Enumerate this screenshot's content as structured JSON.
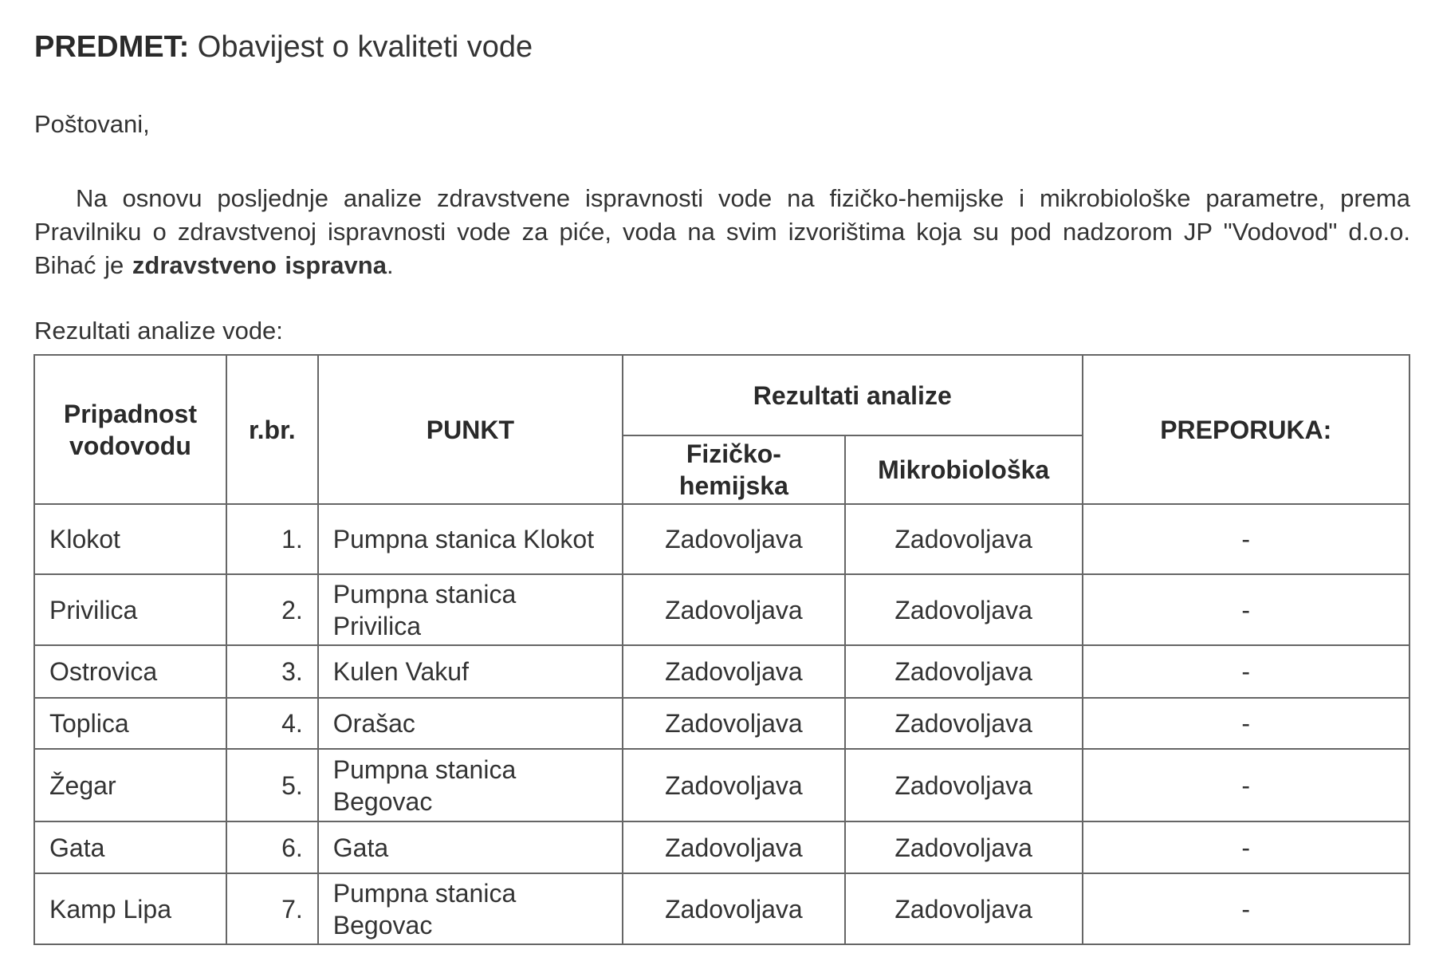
{
  "subject": {
    "label": "PREDMET:",
    "text": "Obavijest o kvaliteti vode"
  },
  "greeting": "Poštovani,",
  "paragraph": {
    "text": "Na osnovu posljednje analize zdravstvene ispravnosti vode na fizičko-hemijske i mikrobiološke parametre, prema Pravilniku o zdravstvenoj ispravnosti vode za piće, voda na svim izvorištima koja su pod nadzorom JP \"Vodovod\" d.o.o. Bihać je ",
    "bold": "zdravstveno ispravna",
    "end": "."
  },
  "table_caption": "Rezultati analize vode:",
  "table": {
    "headers": {
      "owner": "Pripadnost vodovodu",
      "num": "r.br.",
      "point": "PUNKT",
      "results": "Rezultati analize",
      "phys": "Fizičko-hemijska",
      "micro": "Mikrobiološka",
      "rec": "PREPORUKA:"
    },
    "rows": [
      {
        "owner": "Klokot",
        "num": "1.",
        "point": "Pumpna stanica Klokot",
        "phys": "Zadovoljava",
        "micro": "Zadovoljava",
        "rec": "-"
      },
      {
        "owner": "Privilica",
        "num": "2.",
        "point": "Pumpna stanica Privilica",
        "phys": "Zadovoljava",
        "micro": "Zadovoljava",
        "rec": "-"
      },
      {
        "owner": "Ostrovica",
        "num": "3.",
        "point": "Kulen Vakuf",
        "phys": "Zadovoljava",
        "micro": "Zadovoljava",
        "rec": "-"
      },
      {
        "owner": "Toplica",
        "num": "4.",
        "point": "Orašac",
        "phys": "Zadovoljava",
        "micro": "Zadovoljava",
        "rec": "-"
      },
      {
        "owner": "Žegar",
        "num": "5.",
        "point": "Pumpna stanica Begovac",
        "phys": "Zadovoljava",
        "micro": "Zadovoljava",
        "rec": "-"
      },
      {
        "owner": "Gata",
        "num": "6.",
        "point": "Gata",
        "phys": "Zadovoljava",
        "micro": "Zadovoljava",
        "rec": "-"
      },
      {
        "owner": "Kamp Lipa",
        "num": "7.",
        "point": "Pumpna stanica Begovac",
        "phys": "Zadovoljava",
        "micro": "Zadovoljava",
        "rec": "-"
      }
    ]
  }
}
